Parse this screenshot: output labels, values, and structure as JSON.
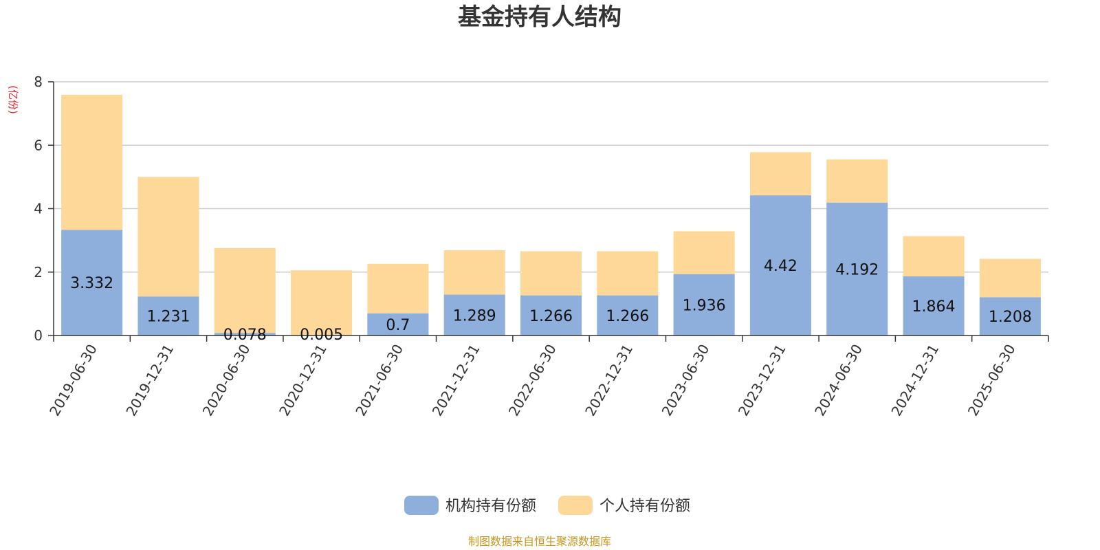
{
  "chart_data": {
    "type": "bar",
    "stacked": true,
    "title": "基金持有人结构",
    "ylabel": "(亿份)",
    "ylim": [
      0,
      8
    ],
    "yticks": [
      0,
      2,
      4,
      6,
      8
    ],
    "grid": true,
    "legend_position": "bottom",
    "categories": [
      "2019-06-30",
      "2019-12-31",
      "2020-06-30",
      "2020-12-31",
      "2021-06-30",
      "2021-12-31",
      "2022-06-30",
      "2022-12-31",
      "2023-06-30",
      "2023-12-31",
      "2024-06-30",
      "2024-12-31",
      "2025-06-30"
    ],
    "series": [
      {
        "name": "机构持有份额",
        "color": "#8eaedb",
        "values": [
          3.332,
          1.231,
          0.078,
          0.005,
          0.7,
          1.289,
          1.266,
          1.266,
          1.936,
          4.42,
          4.192,
          1.864,
          1.208
        ],
        "labels": [
          "3.332",
          "1.231",
          "0.078",
          "0.005",
          "0.7",
          "1.289",
          "1.266",
          "1.266",
          "1.936",
          "4.42",
          "4.192",
          "1.864",
          "1.208"
        ]
      },
      {
        "name": "个人持有份额",
        "color": "#fed899",
        "values": [
          4.26,
          3.77,
          2.68,
          2.05,
          1.56,
          1.4,
          1.39,
          1.39,
          1.35,
          1.36,
          1.36,
          1.27,
          1.21
        ]
      }
    ]
  },
  "source_note": "制图数据来自恒生聚源数据库"
}
